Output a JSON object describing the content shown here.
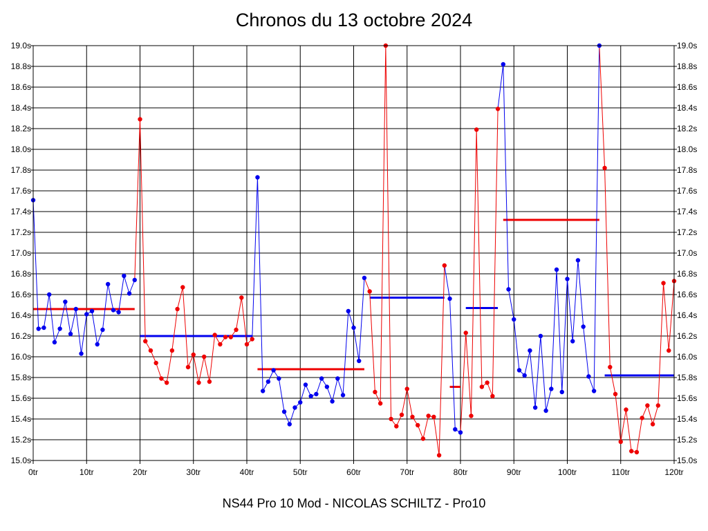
{
  "chart_data": {
    "type": "line",
    "title": "Chronos du 13 octobre 2024",
    "footer": "NS44 Pro 10 Mod - NICOLAS SCHILTZ - Pro10",
    "ylim": [
      15.0,
      19.0
    ],
    "xlim": [
      0,
      120
    ],
    "y_ticks": [
      "15.0s",
      "15.2s",
      "15.4s",
      "15.6s",
      "15.8s",
      "16.0s",
      "16.2s",
      "16.4s",
      "16.6s",
      "16.8s",
      "17.0s",
      "17.2s",
      "17.4s",
      "17.6s",
      "17.8s",
      "18.0s",
      "18.2s",
      "18.4s",
      "18.6s",
      "18.8s",
      "19.0s"
    ],
    "x_ticks": [
      "0tr",
      "10tr",
      "20tr",
      "30tr",
      "40tr",
      "50tr",
      "60tr",
      "70tr",
      "80tr",
      "90tr",
      "100tr",
      "110tr",
      "120tr"
    ],
    "grid": true,
    "colors": {
      "blue": "#0000ee",
      "red": "#ee0000",
      "grid": "#000000"
    },
    "series": [
      {
        "color": "blue",
        "start": 0,
        "values": [
          17.51,
          16.27,
          16.28,
          16.6,
          16.14,
          16.27,
          16.53,
          16.22,
          16.46,
          16.03,
          16.41,
          16.44,
          16.12,
          16.26,
          16.7,
          16.45,
          16.43,
          16.78,
          16.61,
          16.74
        ]
      },
      {
        "color": "red",
        "start": 20,
        "values": [
          18.29,
          16.15,
          16.06,
          15.94,
          15.79,
          15.75,
          16.06,
          16.46,
          16.67,
          15.9,
          16.02,
          15.75,
          16.0,
          15.76,
          16.21,
          16.12,
          16.19,
          16.19,
          16.26,
          16.57,
          16.12,
          16.17
        ]
      },
      {
        "color": "blue",
        "start": 42,
        "values": [
          17.73,
          15.67,
          15.76,
          15.87,
          15.79,
          15.47,
          15.35,
          15.51,
          15.56,
          15.73,
          15.62,
          15.64,
          15.79,
          15.71,
          15.57,
          15.79,
          15.63,
          16.44,
          16.28,
          15.96,
          16.76
        ]
      },
      {
        "color": "red",
        "start": 63,
        "values": [
          16.63,
          15.66,
          15.55,
          19.0,
          15.4,
          15.33,
          15.44,
          15.69,
          15.42,
          15.34,
          15.21,
          15.43,
          15.42,
          15.05,
          16.88
        ]
      },
      {
        "color": "blue",
        "start": 78,
        "values": [
          16.56,
          15.3,
          15.27
        ]
      },
      {
        "color": "red",
        "start": 81,
        "values": [
          16.23,
          15.43,
          18.19,
          15.71,
          15.75,
          15.62,
          18.39
        ]
      },
      {
        "color": "blue",
        "start": 88,
        "values": [
          18.82,
          16.65,
          16.36,
          15.87,
          15.82,
          16.06,
          15.51,
          16.2,
          15.48,
          15.69,
          16.84,
          15.66,
          16.75,
          16.15,
          16.93,
          16.29,
          15.81,
          15.67,
          19.0
        ]
      },
      {
        "color": "red",
        "start": 107,
        "values": [
          17.82,
          15.9,
          15.64,
          15.18,
          15.49,
          15.09,
          15.08,
          15.41,
          15.53,
          15.35,
          15.53,
          16.71,
          16.06,
          16.73
        ]
      }
    ],
    "average_lines": [
      {
        "color": "red",
        "x": [
          0,
          19
        ],
        "y": 16.46
      },
      {
        "color": "blue",
        "x": [
          20,
          41
        ],
        "y": 16.2
      },
      {
        "color": "red",
        "x": [
          42,
          62
        ],
        "y": 15.88
      },
      {
        "color": "blue",
        "x": [
          63,
          77
        ],
        "y": 16.57
      },
      {
        "color": "red",
        "x": [
          78,
          80
        ],
        "y": 15.71
      },
      {
        "color": "blue",
        "x": [
          81,
          87
        ],
        "y": 16.47
      },
      {
        "color": "red",
        "x": [
          88,
          106
        ],
        "y": 17.32
      },
      {
        "color": "blue",
        "x": [
          107,
          120
        ],
        "y": 15.82
      }
    ]
  }
}
